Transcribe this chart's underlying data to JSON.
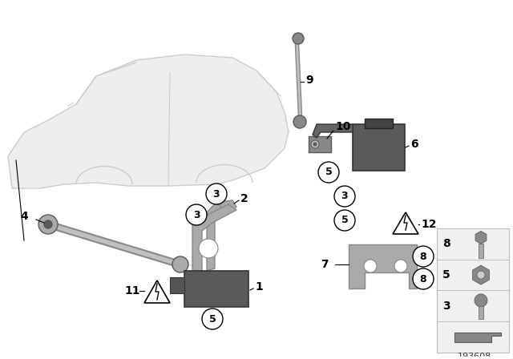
{
  "bg_color": "#ffffff",
  "fig_id": "193608",
  "line_color": "#000000",
  "car_color": "#cccccc",
  "part_dark": "#5a5a5a",
  "part_mid": "#888888",
  "part_light": "#aaaaaa",
  "part_lighter": "#c0c0c0",
  "legend_bg": "#f0f0f0",
  "legend_border": "#bbbbbb"
}
